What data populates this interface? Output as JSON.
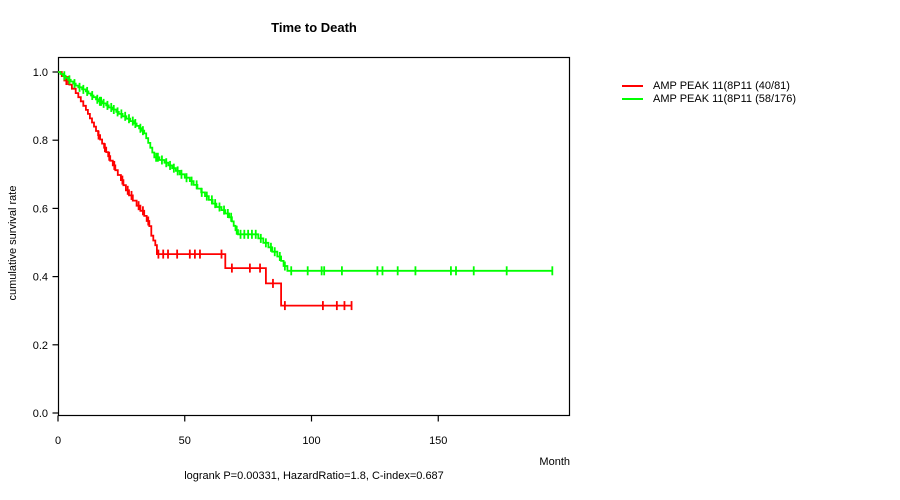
{
  "title": "Time to Death",
  "y_axis_label": "cumulative survival rate",
  "x_axis_label": "Month",
  "footer_stats": "logrank P=0.00331, HazardRatio=1.8, C-index=0.687",
  "legend": {
    "entries": [
      {
        "label": "AMP PEAK 11(8P11 (40/81)",
        "color": "#ff0000"
      },
      {
        "label": "AMP PEAK 11(8P11 (58/176)",
        "color": "#00ff00"
      }
    ]
  },
  "chart_data": {
    "type": "line",
    "subtype": "kaplan-meier-step",
    "title": "Time to Death",
    "xlabel": "Month",
    "ylabel": "cumulative survival rate",
    "xlim": [
      0,
      202
    ],
    "ylim": [
      0,
      1.0
    ],
    "xtick_values": [
      0,
      50,
      100,
      150
    ],
    "xtick_labels": [
      "0",
      "50",
      "100",
      "150"
    ],
    "ytick_values": [
      0,
      0.2,
      0.4,
      0.6,
      0.8,
      1.0
    ],
    "ytick_labels": [
      "0.0",
      "0.2",
      "0.4",
      "0.6",
      "0.8",
      "1.0"
    ],
    "grid": false,
    "legend_position": "right-outside",
    "series": [
      {
        "id": "group-red",
        "name": "AMP PEAK 11(8P11 (40/81)",
        "color": "#ff0000",
        "events": "40/81",
        "end_month": 116,
        "steps": [
          [
            0,
            1.0
          ],
          [
            1.5,
            0.988
          ],
          [
            2.5,
            0.975
          ],
          [
            4.5,
            0.963
          ],
          [
            5.5,
            0.951
          ],
          [
            7,
            0.938
          ],
          [
            8,
            0.926
          ],
          [
            9,
            0.914
          ],
          [
            10,
            0.901
          ],
          [
            11,
            0.889
          ],
          [
            11.8,
            0.877
          ],
          [
            12.6,
            0.864
          ],
          [
            13.4,
            0.852
          ],
          [
            14.2,
            0.84
          ],
          [
            15,
            0.827
          ],
          [
            15.8,
            0.815
          ],
          [
            16.6,
            0.802
          ],
          [
            17.4,
            0.79
          ],
          [
            18.2,
            0.778
          ],
          [
            19,
            0.765
          ],
          [
            19.8,
            0.753
          ],
          [
            20.6,
            0.74
          ],
          [
            21.6,
            0.726
          ],
          [
            22.6,
            0.712
          ],
          [
            23.6,
            0.698
          ],
          [
            24.8,
            0.683
          ],
          [
            25.8,
            0.668
          ],
          [
            26.8,
            0.653
          ],
          [
            28,
            0.638
          ],
          [
            29.5,
            0.623
          ],
          [
            31,
            0.608
          ],
          [
            32.5,
            0.593
          ],
          [
            34,
            0.578
          ],
          [
            35,
            0.563
          ],
          [
            36,
            0.548
          ],
          [
            36.8,
            0.52
          ],
          [
            37.6,
            0.506
          ],
          [
            38.4,
            0.492
          ],
          [
            39,
            0.466
          ],
          [
            66,
            0.425
          ],
          [
            82,
            0.38
          ],
          [
            88,
            0.315
          ]
        ],
        "censor_months": [
          3.3,
          4,
          16,
          18.5,
          20.2,
          22.2,
          25.4,
          27.5,
          29,
          31.8,
          33.5,
          35.6,
          39.6,
          41.5,
          43.4,
          47,
          52,
          54,
          56,
          64.5,
          68.6,
          75.7,
          79.7,
          84.8,
          89.5,
          104.5,
          110,
          113,
          115.8
        ]
      },
      {
        "id": "group-green",
        "name": "AMP PEAK 11(8P11 (58/176)",
        "color": "#00ff00",
        "events": "58/176",
        "end_month": 195,
        "steps": [
          [
            0,
            1.0
          ],
          [
            1,
            0.994
          ],
          [
            2,
            0.989
          ],
          [
            3,
            0.983
          ],
          [
            4,
            0.977
          ],
          [
            5,
            0.972
          ],
          [
            6,
            0.966
          ],
          [
            7,
            0.96
          ],
          [
            8,
            0.955
          ],
          [
            9.5,
            0.949
          ],
          [
            11,
            0.943
          ],
          [
            12,
            0.937
          ],
          [
            13,
            0.931
          ],
          [
            14,
            0.926
          ],
          [
            15,
            0.92
          ],
          [
            16,
            0.914
          ],
          [
            17.5,
            0.908
          ],
          [
            19,
            0.902
          ],
          [
            20,
            0.896
          ],
          [
            21.5,
            0.89
          ],
          [
            23,
            0.883
          ],
          [
            24,
            0.877
          ],
          [
            25.5,
            0.87
          ],
          [
            27,
            0.863
          ],
          [
            28.5,
            0.856
          ],
          [
            30,
            0.849
          ],
          [
            31,
            0.842
          ],
          [
            32,
            0.835
          ],
          [
            33,
            0.828
          ],
          [
            34,
            0.82
          ],
          [
            34.8,
            0.806
          ],
          [
            35.6,
            0.792
          ],
          [
            36.4,
            0.778
          ],
          [
            37.2,
            0.764
          ],
          [
            38,
            0.75
          ],
          [
            40,
            0.742
          ],
          [
            42,
            0.734
          ],
          [
            43.5,
            0.726
          ],
          [
            45,
            0.718
          ],
          [
            46.5,
            0.71
          ],
          [
            48,
            0.7
          ],
          [
            50,
            0.69
          ],
          [
            52,
            0.68
          ],
          [
            53.5,
            0.669
          ],
          [
            55,
            0.658
          ],
          [
            56.5,
            0.647
          ],
          [
            58,
            0.636
          ],
          [
            59.5,
            0.625
          ],
          [
            61,
            0.614
          ],
          [
            62.5,
            0.604
          ],
          [
            64.5,
            0.595
          ],
          [
            66,
            0.585
          ],
          [
            67.5,
            0.574
          ],
          [
            68.6,
            0.562
          ],
          [
            69.3,
            0.549
          ],
          [
            70,
            0.536
          ],
          [
            71,
            0.524
          ],
          [
            79,
            0.512
          ],
          [
            81,
            0.499
          ],
          [
            83,
            0.486
          ],
          [
            84.5,
            0.473
          ],
          [
            86.5,
            0.459
          ],
          [
            88,
            0.446
          ],
          [
            89,
            0.431
          ],
          [
            90.5,
            0.417
          ]
        ],
        "censor_months": [
          2.5,
          4.5,
          6.5,
          8.5,
          10,
          11.5,
          13.5,
          15.5,
          16.5,
          17,
          18,
          19.5,
          21,
          22,
          23.5,
          25,
          26.5,
          28,
          29.5,
          30.5,
          32.5,
          33.5,
          38.7,
          39.4,
          41,
          42.7,
          44.2,
          45.7,
          47.2,
          48.7,
          50.7,
          52.7,
          54.7,
          56.7,
          58.7,
          60.7,
          62,
          63.7,
          65.5,
          67,
          68.3,
          70.5,
          72,
          73.5,
          75,
          76.5,
          78,
          80,
          82,
          84,
          85.5,
          87.5,
          89.5,
          92,
          98.5,
          104,
          105,
          112,
          126,
          128,
          134,
          141,
          155,
          157,
          164,
          177,
          195
        ]
      }
    ]
  }
}
